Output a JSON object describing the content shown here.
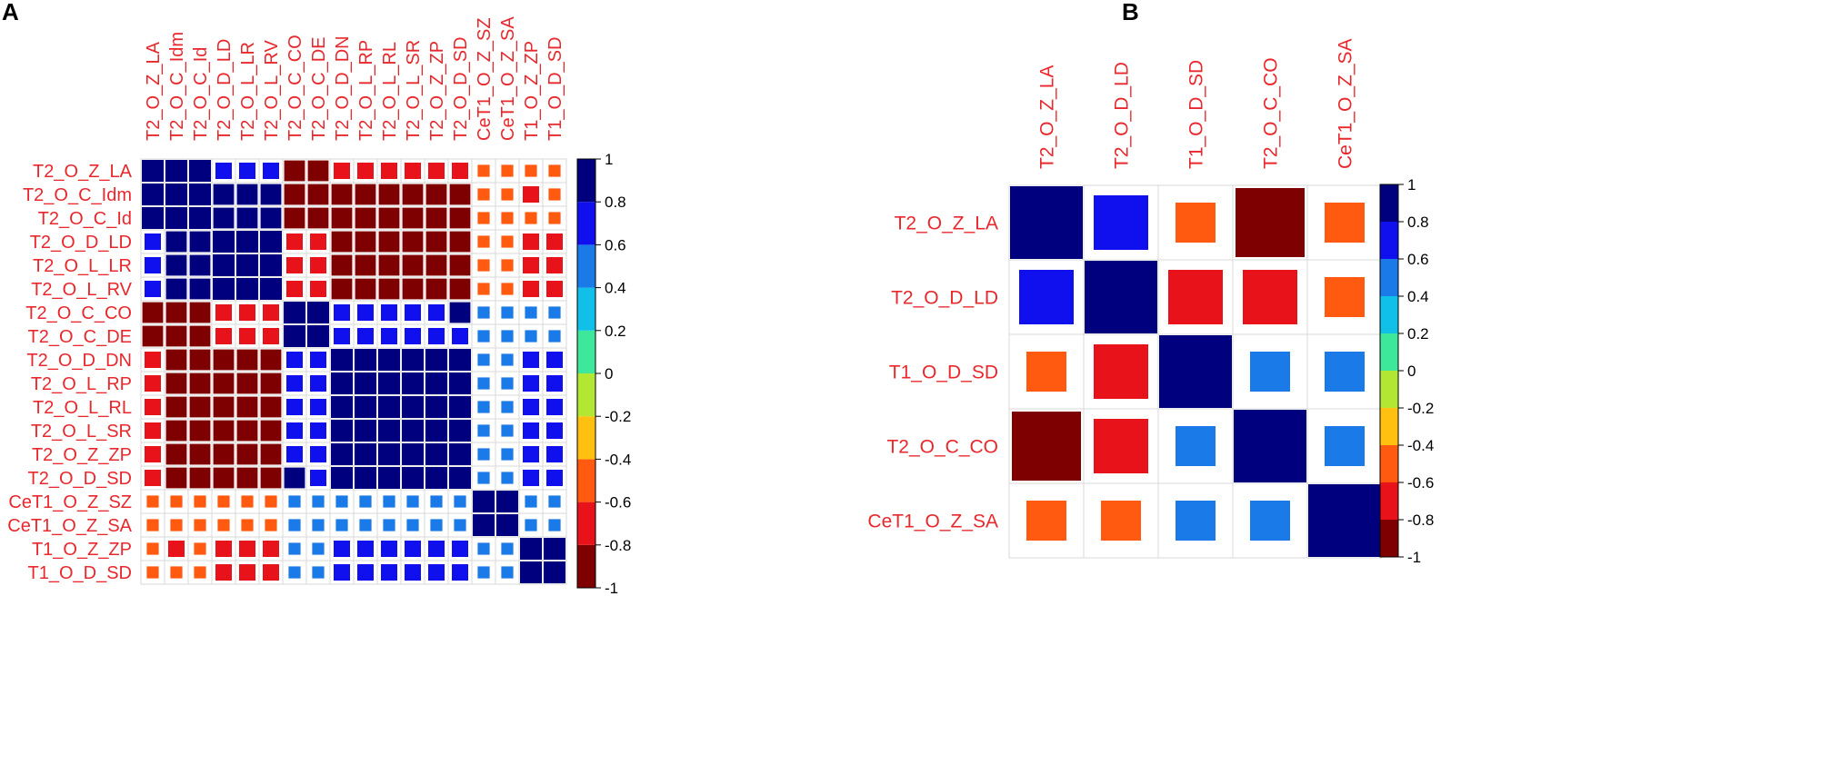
{
  "panel_labels": [
    "A",
    "B"
  ],
  "legend_ticks": [
    "1",
    "0.8",
    "0.6",
    "0.4",
    "0.2",
    "0",
    "-0.2",
    "-0.4",
    "-0.6",
    "-0.8",
    "-1"
  ],
  "colors": {
    "label": "#e8282c",
    "grid": "#d8d8d8",
    "scale": [
      "#7f0000",
      "#e8131a",
      "#ff5a10",
      "#ffc010",
      "#b2e833",
      "#3de89a",
      "#10c0e8",
      "#1a7ae8",
      "#1010ee",
      "#00007f"
    ]
  },
  "chart_data": [
    {
      "type": "heatmap",
      "title": "",
      "panel": "A",
      "glyph": "square",
      "value_range": [
        -1,
        1
      ],
      "variables": [
        "T2_O_Z_LA",
        "T2_O_C_Idm",
        "T2_O_C_Id",
        "T2_O_D_LD",
        "T2_O_L_LR",
        "T2_O_L_RV",
        "T2_O_C_CO",
        "T2_O_C_DE",
        "T2_O_D_DN",
        "T2_O_L_RP",
        "T2_O_L_RL",
        "T2_O_L_SR",
        "T2_O_Z_ZP",
        "T2_O_D_SD",
        "CeT1_O_Z_SZ",
        "CeT1_O_Z_SA",
        "T1_O_Z_ZP",
        "T1_O_D_SD"
      ],
      "column_labels": [
        "T2_O_Z_LA",
        "T2_O_C_Idm",
        "T2_O_C_Id",
        "T2_O_D_LD",
        "T2_O_L_LR",
        "T2_O_L_RV",
        "T2_O_C_CO",
        "T2_O_C_DE",
        "T2_O_D_DN",
        "T2_O_L_RP",
        "T2_O_L_RL",
        "T2_O_L_SR",
        "T2_O_Z_ZP",
        "T2_O_D_SD",
        "CeT1_O_Z_SZ",
        "CeT1_O_Z_SA",
        "T1_O_Z_ZP",
        "T1_O_D_SD"
      ],
      "matrix": [
        [
          1,
          1,
          1,
          0.75,
          0.75,
          0.75,
          -0.95,
          -0.95,
          -0.75,
          -0.75,
          -0.75,
          -0.75,
          -0.75,
          -0.75,
          -0.55,
          -0.55,
          -0.55,
          -0.55
        ],
        [
          1,
          1,
          1,
          0.95,
          0.95,
          0.95,
          -0.95,
          -0.95,
          -0.95,
          -0.95,
          -0.95,
          -0.95,
          -0.95,
          -0.95,
          -0.55,
          -0.55,
          -0.75,
          -0.55
        ],
        [
          1,
          1,
          1,
          0.95,
          0.95,
          0.95,
          -0.95,
          -0.95,
          -0.95,
          -0.95,
          -0.95,
          -0.95,
          -0.95,
          -0.95,
          -0.55,
          -0.55,
          -0.55,
          -0.55
        ],
        [
          0.75,
          0.95,
          0.95,
          1,
          1,
          1,
          -0.75,
          -0.75,
          -0.95,
          -0.95,
          -0.95,
          -0.95,
          -0.95,
          -0.95,
          -0.55,
          -0.55,
          -0.75,
          -0.75
        ],
        [
          0.75,
          0.95,
          0.95,
          1,
          1,
          1,
          -0.75,
          -0.75,
          -0.95,
          -0.95,
          -0.95,
          -0.95,
          -0.95,
          -0.95,
          -0.55,
          -0.55,
          -0.75,
          -0.75
        ],
        [
          0.75,
          0.95,
          0.95,
          1,
          1,
          1,
          -0.75,
          -0.75,
          -0.95,
          -0.95,
          -0.95,
          -0.95,
          -0.95,
          -0.95,
          -0.55,
          -0.55,
          -0.75,
          -0.75
        ],
        [
          -0.95,
          -0.95,
          -0.95,
          -0.75,
          -0.75,
          -0.75,
          1,
          1,
          0.75,
          0.75,
          0.75,
          0.75,
          0.75,
          0.95,
          0.55,
          0.55,
          0.55,
          0.55
        ],
        [
          -0.95,
          -0.95,
          -0.95,
          -0.75,
          -0.75,
          -0.75,
          1,
          1,
          0.75,
          0.75,
          0.75,
          0.75,
          0.75,
          0.75,
          0.55,
          0.55,
          0.55,
          0.55
        ],
        [
          -0.75,
          -0.95,
          -0.95,
          -0.95,
          -0.95,
          -0.95,
          0.75,
          0.75,
          1,
          1,
          1,
          1,
          1,
          1,
          0.55,
          0.55,
          0.75,
          0.75
        ],
        [
          -0.75,
          -0.95,
          -0.95,
          -0.95,
          -0.95,
          -0.95,
          0.75,
          0.75,
          1,
          1,
          1,
          1,
          1,
          1,
          0.55,
          0.55,
          0.75,
          0.75
        ],
        [
          -0.75,
          -0.95,
          -0.95,
          -0.95,
          -0.95,
          -0.95,
          0.75,
          0.75,
          1,
          1,
          1,
          1,
          1,
          1,
          0.55,
          0.55,
          0.75,
          0.75
        ],
        [
          -0.75,
          -0.95,
          -0.95,
          -0.95,
          -0.95,
          -0.95,
          0.75,
          0.75,
          1,
          1,
          1,
          1,
          1,
          1,
          0.55,
          0.55,
          0.75,
          0.75
        ],
        [
          -0.75,
          -0.95,
          -0.95,
          -0.95,
          -0.95,
          -0.95,
          0.75,
          0.75,
          1,
          1,
          1,
          1,
          1,
          1,
          0.55,
          0.55,
          0.75,
          0.75
        ],
        [
          -0.75,
          -0.95,
          -0.95,
          -0.95,
          -0.95,
          -0.95,
          0.95,
          0.75,
          1,
          1,
          1,
          1,
          1,
          1,
          0.55,
          0.55,
          0.75,
          0.75
        ],
        [
          -0.55,
          -0.55,
          -0.55,
          -0.55,
          -0.55,
          -0.55,
          0.55,
          0.55,
          0.55,
          0.55,
          0.55,
          0.55,
          0.55,
          0.55,
          1,
          1,
          0.55,
          0.55
        ],
        [
          -0.55,
          -0.55,
          -0.55,
          -0.55,
          -0.55,
          -0.55,
          0.55,
          0.55,
          0.55,
          0.55,
          0.55,
          0.55,
          0.55,
          0.55,
          1,
          1,
          0.55,
          0.55
        ],
        [
          -0.55,
          -0.75,
          -0.55,
          -0.75,
          -0.75,
          -0.75,
          0.55,
          0.55,
          0.75,
          0.75,
          0.75,
          0.75,
          0.75,
          0.75,
          0.55,
          0.55,
          1,
          1
        ],
        [
          -0.55,
          -0.55,
          -0.55,
          -0.75,
          -0.75,
          -0.75,
          0.55,
          0.55,
          0.75,
          0.75,
          0.75,
          0.75,
          0.75,
          0.75,
          0.55,
          0.55,
          1,
          1
        ]
      ],
      "legend": {
        "min": -1,
        "max": 1,
        "ticks": [
          1,
          0.8,
          0.6,
          0.4,
          0.2,
          0,
          -0.2,
          -0.4,
          -0.6,
          -0.8,
          -1
        ],
        "position": "right"
      }
    },
    {
      "type": "heatmap",
      "title": "",
      "panel": "B",
      "glyph": "square",
      "value_range": [
        -1,
        1
      ],
      "variables": [
        "T2_O_Z_LA",
        "T2_O_D_LD",
        "T1_O_D_SD",
        "T2_O_C_CO",
        "CeT1_O_Z_SA"
      ],
      "column_labels": [
        "T2_O_Z_LA",
        "T2_O_D_LD",
        "T1_O_D_SD",
        "T2_O_C_CO",
        "CeT1_O_Z_SA"
      ],
      "matrix": [
        [
          1,
          0.75,
          -0.55,
          -0.95,
          -0.55
        ],
        [
          0.75,
          1,
          -0.75,
          -0.75,
          -0.55
        ],
        [
          -0.55,
          -0.75,
          1,
          0.55,
          0.55
        ],
        [
          -0.95,
          -0.75,
          0.55,
          1,
          0.55
        ],
        [
          -0.55,
          -0.55,
          0.55,
          0.55,
          1
        ]
      ],
      "legend": {
        "min": -1,
        "max": 1,
        "ticks": [
          1,
          0.8,
          0.6,
          0.4,
          0.2,
          0,
          -0.2,
          -0.4,
          -0.6,
          -0.8,
          -1
        ],
        "position": "right"
      }
    }
  ]
}
